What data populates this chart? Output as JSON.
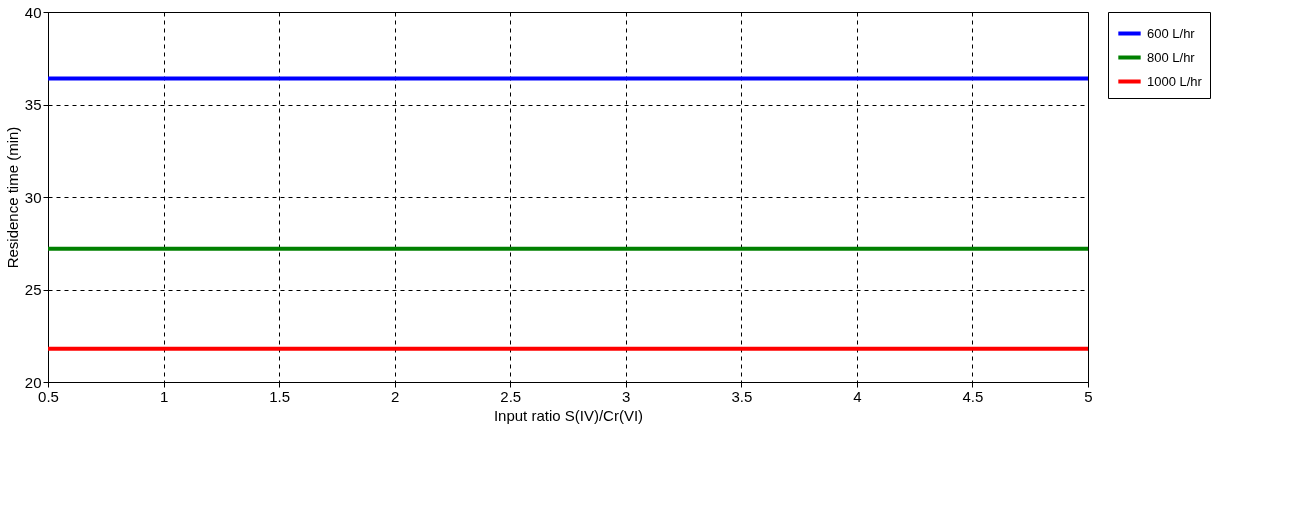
{
  "chart_data": {
    "type": "line",
    "xlabel": "Input ratio S(IV)/Cr(VI)",
    "ylabel": "Residence time (min)",
    "x": [
      0.5,
      5
    ],
    "series": [
      {
        "name": "600 L/hr",
        "color": "#0000ff",
        "values": [
          36.4,
          36.4
        ]
      },
      {
        "name": "800 L/hr",
        "color": "#008000",
        "values": [
          27.2,
          27.2
        ]
      },
      {
        "name": "1000 L/hr",
        "color": "#ff0000",
        "values": [
          21.8,
          21.8
        ]
      }
    ],
    "xlim": [
      0.5,
      5
    ],
    "ylim": [
      20,
      40
    ],
    "xticks": [
      0.5,
      1,
      1.5,
      2,
      2.5,
      3,
      3.5,
      4,
      4.5,
      5
    ],
    "yticks": [
      20,
      25,
      30,
      35,
      40
    ],
    "grid": true,
    "legend": "right",
    "marker": "none",
    "line_style": "solid"
  }
}
